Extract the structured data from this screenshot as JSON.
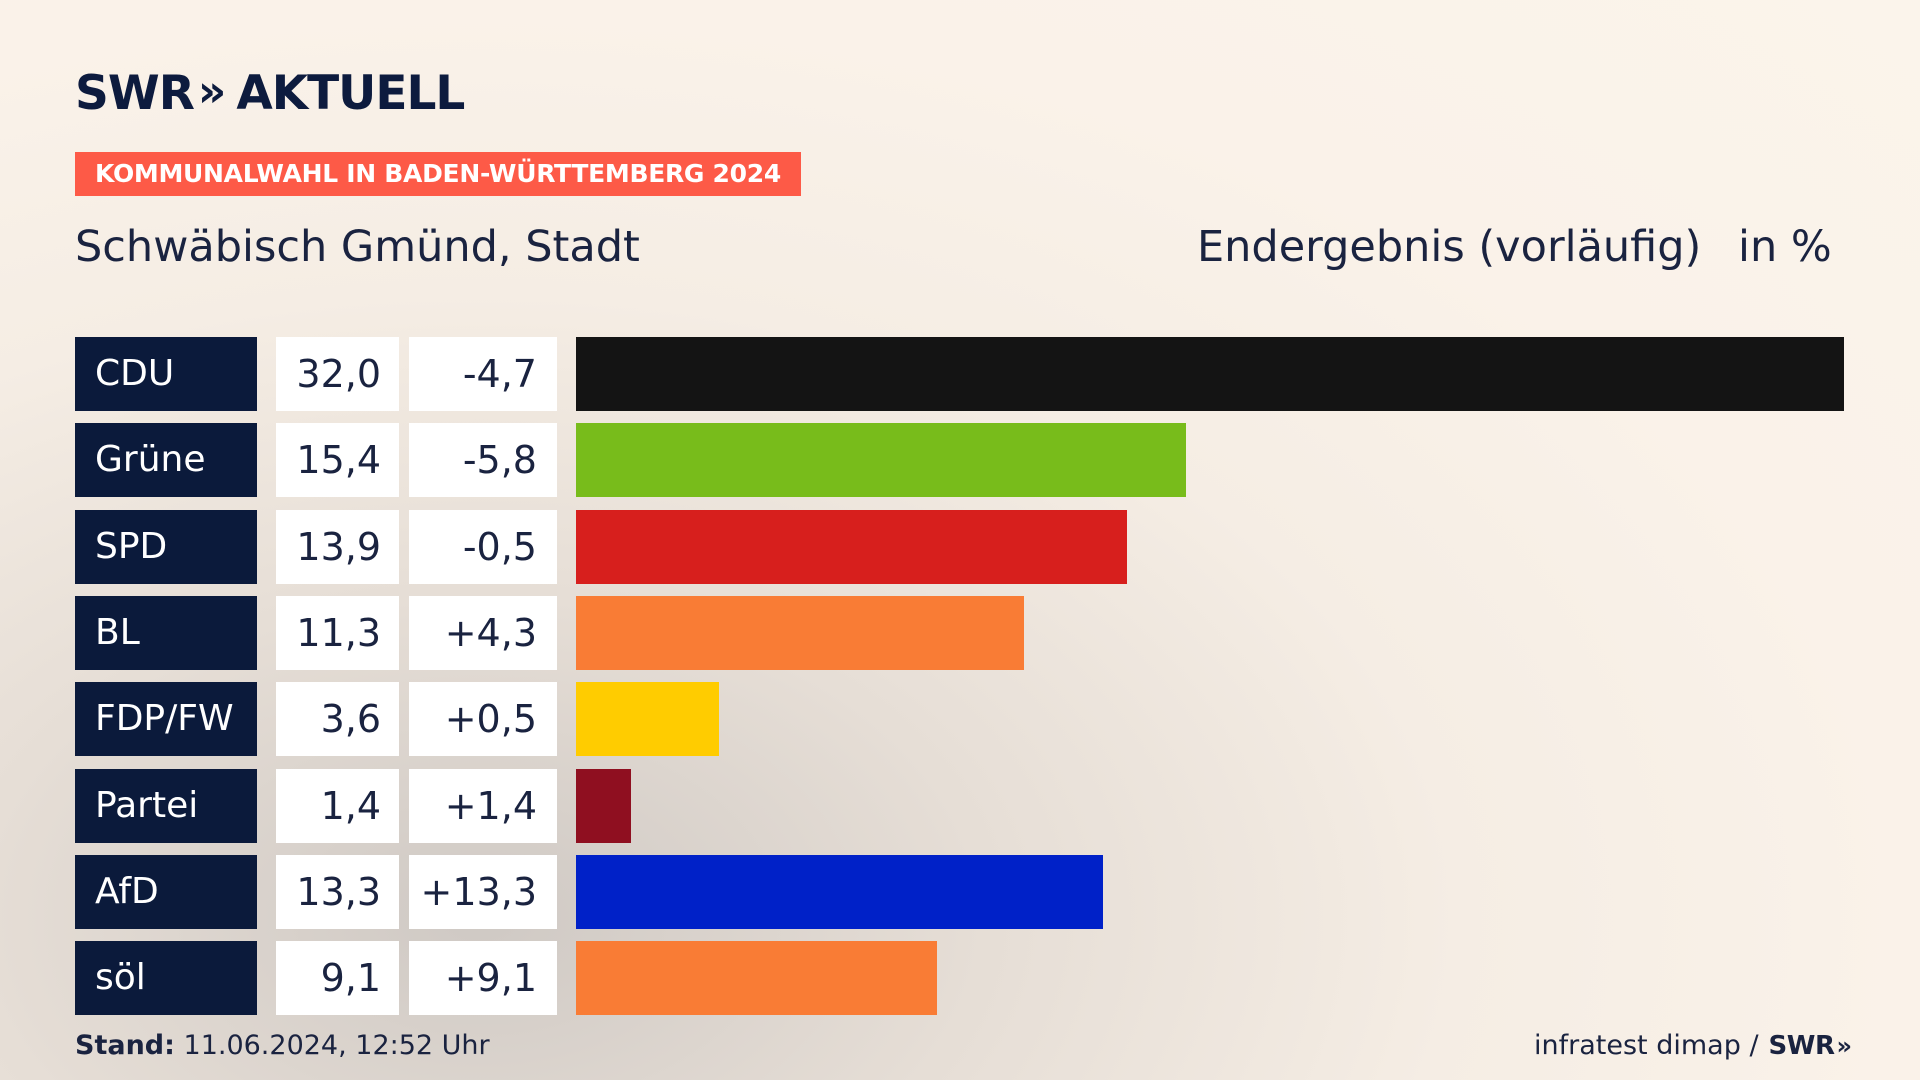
{
  "header": {
    "logo_text": "SWR",
    "logo_chevrons": "»",
    "logo_suffix": "AKTUELL",
    "badge": "KOMMUNALWAHL IN BADEN-WÜRTTEMBERG 2024",
    "region": "Schwäbisch Gmünd, Stadt",
    "status": "Endergebnis (vorläufig)",
    "unit": "in %"
  },
  "chart_data": {
    "type": "bar",
    "orientation": "horizontal",
    "categories": [
      "CDU",
      "Grüne",
      "SPD",
      "BL",
      "FDP/FW",
      "Partei",
      "AfD",
      "söl"
    ],
    "values": [
      32.0,
      15.4,
      13.9,
      11.3,
      3.6,
      1.4,
      13.3,
      9.1
    ],
    "value_labels": [
      "32,0",
      "15,4",
      "13,9",
      "11,3",
      "3,6",
      "1,4",
      "13,3",
      "9,1"
    ],
    "diff_labels": [
      "-4,7",
      "-5,8",
      "-0,5",
      "+4,3",
      "+0,5",
      "+1,4",
      "+13,3",
      "+9,1"
    ],
    "diffs": [
      -4.7,
      -5.8,
      -0.5,
      4.3,
      0.5,
      1.4,
      13.3,
      9.1
    ],
    "colors": [
      "#141414",
      "#78bc1b",
      "#d71f1d",
      "#f97c35",
      "#ffcc00",
      "#8f0f20",
      "#0021c8",
      "#f97c35"
    ],
    "xlim": [
      0,
      32.0
    ],
    "grid": false,
    "legend": "none"
  },
  "footer": {
    "stand_label": "Stand:",
    "stand_value": "11.06.2024, 12:52 Uhr",
    "source": "infratest dimap /",
    "source_logo": "SWR",
    "source_chevrons": "»"
  }
}
